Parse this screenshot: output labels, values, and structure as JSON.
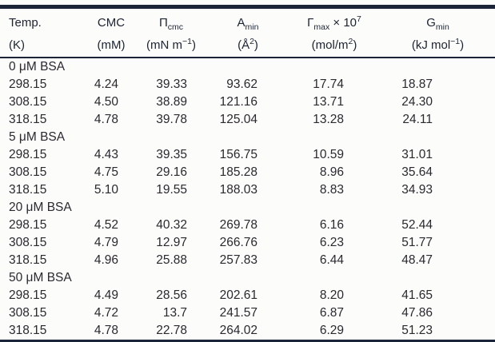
{
  "colors": {
    "rule": "#1c2438",
    "text": "#2b2830",
    "header_text": "#1c2433",
    "background": "#fcfcfa"
  },
  "table": {
    "columns": [
      {
        "main": "Temp.",
        "sub": "",
        "mid": "",
        "sup": "",
        "unit_pre": "(K)",
        "unit_sup": "",
        "unit_post": ""
      },
      {
        "main": "CMC",
        "sub": "",
        "mid": "",
        "sup": "",
        "unit_pre": "(mM)",
        "unit_sup": "",
        "unit_post": ""
      },
      {
        "main": "Π",
        "sub": "cmc",
        "mid": "",
        "sup": "",
        "unit_pre": "(mN m",
        "unit_sup": "−1",
        "unit_post": ")"
      },
      {
        "main": "A",
        "sub": "min",
        "mid": "",
        "sup": "",
        "unit_pre": "(Å",
        "unit_sup": "2",
        "unit_post": ")"
      },
      {
        "main": "Γ",
        "sub": "max",
        "mid": " × 10",
        "sup": "7",
        "unit_pre": "(mol/m",
        "unit_sup": "2",
        "unit_post": ")"
      },
      {
        "main": "G",
        "sub": "min",
        "mid": "",
        "sup": "",
        "unit_pre": "(kJ mol",
        "unit_sup": "−1",
        "unit_post": ")"
      }
    ],
    "rows": [
      {
        "type": "group",
        "label": "0 μM BSA"
      },
      {
        "type": "data",
        "cells": [
          "298.15",
          "4.24",
          "39.33",
          "93.62",
          "17.74",
          "18.87"
        ]
      },
      {
        "type": "data",
        "cells": [
          "308.15",
          "4.50",
          "38.89",
          "121.16",
          "13.71",
          "24.30"
        ]
      },
      {
        "type": "data",
        "cells": [
          "318.15",
          "4.78",
          "39.78",
          "125.04",
          "13.28",
          "24.11"
        ]
      },
      {
        "type": "group",
        "label": "5 μM BSA"
      },
      {
        "type": "data",
        "cells": [
          "298.15",
          "4.43",
          "39.35",
          "156.75",
          "10.59",
          "31.01"
        ]
      },
      {
        "type": "data",
        "cells": [
          "308.15",
          "4.75",
          "29.16",
          "185.28",
          "8.96",
          "35.64"
        ]
      },
      {
        "type": "data",
        "cells": [
          "318.15",
          "5.10",
          "19.55",
          "188.03",
          "8.83",
          "34.93"
        ]
      },
      {
        "type": "group",
        "label": "20 μM BSA"
      },
      {
        "type": "data",
        "cells": [
          "298.15",
          "4.52",
          "40.32",
          "269.78",
          "6.16",
          "52.44"
        ]
      },
      {
        "type": "data",
        "cells": [
          "308.15",
          "4.79",
          "12.97",
          "266.76",
          "6.23",
          "51.77"
        ]
      },
      {
        "type": "data",
        "cells": [
          "318.15",
          "4.96",
          "25.88",
          "257.83",
          "6.44",
          "48.47"
        ]
      },
      {
        "type": "group",
        "label": "50 μM BSA"
      },
      {
        "type": "data",
        "cells": [
          "298.15",
          "4.49",
          "28.56",
          "202.61",
          "8.20",
          "41.65"
        ]
      },
      {
        "type": "data",
        "cells": [
          "308.15",
          "4.72",
          "13.7",
          "241.57",
          "6.87",
          "47.86"
        ]
      },
      {
        "type": "data",
        "cells": [
          "318.15",
          "4.78",
          "22.78",
          "264.02",
          "6.29",
          "51.23"
        ]
      }
    ]
  }
}
